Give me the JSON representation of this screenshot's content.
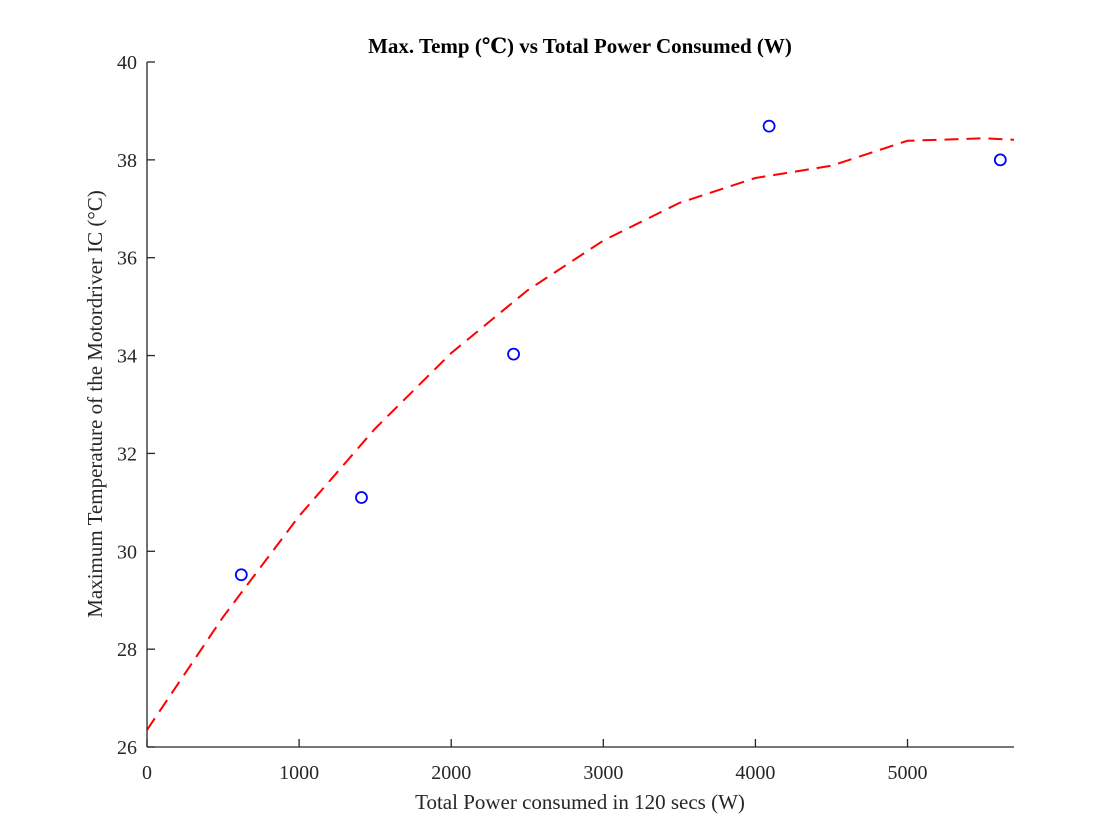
{
  "chart_data": {
    "type": "scatter",
    "title": "Max. Temp (℃) vs Total Power Consumed (W)",
    "xlabel": "Total Power consumed in 120 secs (W)",
    "ylabel": "Maximum Temperature of the Motordriver IC (°C)",
    "xlim": [
      0,
      5700
    ],
    "ylim": [
      26,
      40
    ],
    "xticks": [
      0,
      1000,
      2000,
      3000,
      4000,
      5000
    ],
    "yticks": [
      26,
      28,
      30,
      32,
      34,
      36,
      38,
      40
    ],
    "grid": false,
    "legend": "none",
    "series": [
      {
        "kind": "markers",
        "marker": "circle-open",
        "color": "#0000ff",
        "x": [
          620,
          1410,
          2410,
          4090,
          5610
        ],
        "y": [
          29.52,
          31.1,
          34.03,
          38.69,
          38.0
        ]
      },
      {
        "kind": "fit-curve",
        "style": "dashed",
        "color": "#ff0000",
        "x": [
          0,
          500,
          1000,
          1500,
          2000,
          2500,
          3000,
          3500,
          4000,
          4500,
          5000,
          5500,
          5700
        ],
        "y": [
          26.35,
          28.66,
          30.72,
          32.51,
          34.05,
          35.33,
          36.35,
          37.12,
          37.63,
          37.88,
          38.39,
          38.44,
          38.41
        ]
      }
    ]
  }
}
